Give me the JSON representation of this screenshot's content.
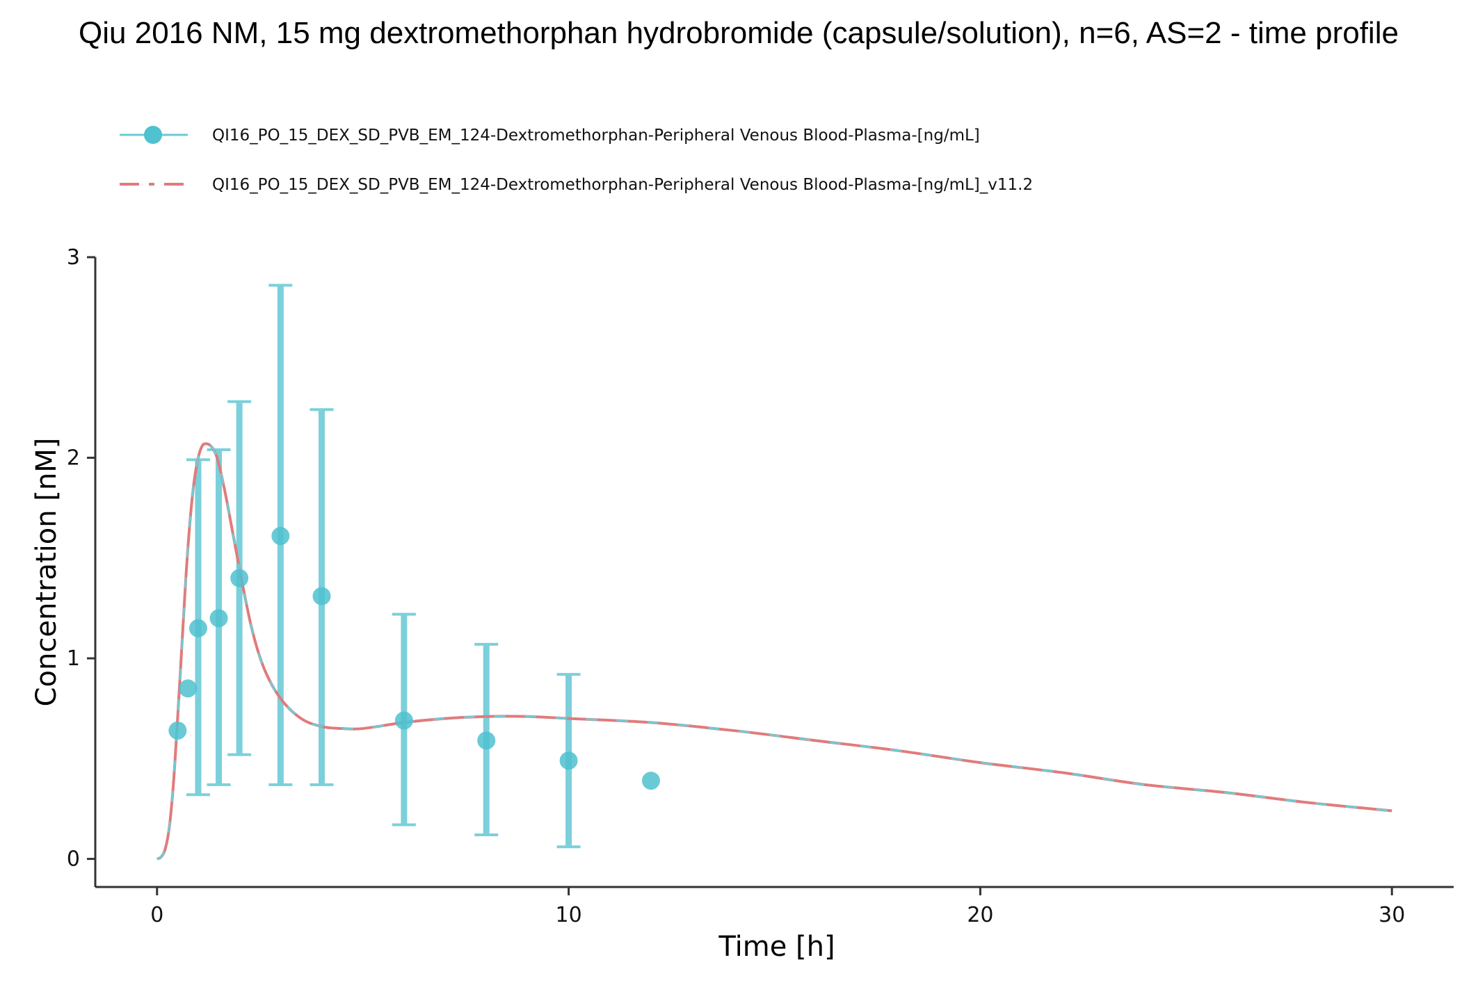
{
  "chart_data": {
    "type": "scatter",
    "title": "Qiu 2016 NM, 15 mg dextromethorphan hydrobromide (capsule/solution), n=6, AS=2 - time profile",
    "xlabel": "Time [h]",
    "ylabel": "Concentration [nM]",
    "xlim": [
      -1.5,
      31.5
    ],
    "ylim": [
      -0.14,
      3.0
    ],
    "xticks": [
      0,
      10,
      20,
      30
    ],
    "yticks": [
      0,
      1,
      2,
      3
    ],
    "grid": false,
    "legend_position": "top-left",
    "colors": {
      "observed": "#4fc1cf",
      "simulated_red": "#e07b7b",
      "simulated_cyan": "#6fcbd6"
    },
    "series": [
      {
        "name": "QI16_PO_15_DEX_SD_PVB_EM_124-Dextromethorphan-Peripheral Venous Blood-Plasma-[ng/mL]",
        "kind": "observed-points-with-errorbars",
        "x": [
          0.5,
          0.75,
          1.0,
          1.5,
          2.0,
          3.0,
          4.0,
          6.0,
          8.0,
          10.0,
          12.0
        ],
        "y": [
          0.64,
          0.85,
          1.15,
          1.2,
          1.4,
          1.61,
          1.31,
          0.69,
          0.59,
          0.49,
          0.39
        ],
        "y_lower": [
          null,
          null,
          0.32,
          0.37,
          0.52,
          0.37,
          0.37,
          0.17,
          0.12,
          0.06,
          null
        ],
        "y_upper": [
          null,
          null,
          1.99,
          2.04,
          2.28,
          2.86,
          2.24,
          1.22,
          1.07,
          0.92,
          null
        ]
      },
      {
        "name": "QI16_PO_15_DEX_SD_PVB_EM_124-Dextromethorphan-Peripheral Venous Blood-Plasma-[ng/mL]_v11.2",
        "kind": "simulated-line",
        "x": [
          0.0,
          0.1,
          0.2,
          0.3,
          0.4,
          0.5,
          0.6,
          0.7,
          0.8,
          0.9,
          1.0,
          1.1,
          1.2,
          1.3,
          1.4,
          1.5,
          1.7,
          2.0,
          2.3,
          2.6,
          3.0,
          3.5,
          4.0,
          4.5,
          5.0,
          6.0,
          7.0,
          8.0,
          9.0,
          10.0,
          12.0,
          14.0,
          16.0,
          18.0,
          20.0,
          22.0,
          24.0,
          26.0,
          28.0,
          30.0
        ],
        "y": [
          0.0,
          0.01,
          0.05,
          0.16,
          0.38,
          0.7,
          1.05,
          1.4,
          1.68,
          1.88,
          2.0,
          2.06,
          2.07,
          2.06,
          2.03,
          1.97,
          1.78,
          1.45,
          1.15,
          0.95,
          0.8,
          0.7,
          0.66,
          0.65,
          0.65,
          0.68,
          0.7,
          0.71,
          0.71,
          0.7,
          0.68,
          0.64,
          0.59,
          0.54,
          0.48,
          0.43,
          0.37,
          0.33,
          0.28,
          0.24
        ]
      }
    ]
  }
}
